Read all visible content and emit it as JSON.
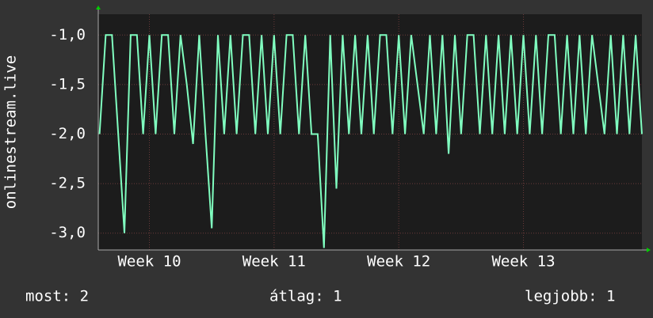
{
  "chart_data": {
    "type": "line",
    "y_label": "onlinestream.live",
    "x": [
      9.6,
      9.65,
      9.7,
      9.75,
      9.8,
      9.85,
      9.9,
      9.95,
      10.0,
      10.05,
      10.1,
      10.15,
      10.2,
      10.25,
      10.3,
      10.35,
      10.4,
      10.45,
      10.5,
      10.55,
      10.6,
      10.65,
      10.7,
      10.75,
      10.8,
      10.85,
      10.9,
      10.95,
      11.0,
      11.05,
      11.1,
      11.15,
      11.2,
      11.25,
      11.3,
      11.35,
      11.4,
      11.45,
      11.5,
      11.55,
      11.6,
      11.65,
      11.7,
      11.75,
      11.8,
      11.85,
      11.9,
      11.95,
      12.0,
      12.05,
      12.1,
      12.15,
      12.2,
      12.25,
      12.3,
      12.35,
      12.4,
      12.45,
      12.5,
      12.55,
      12.6,
      12.65,
      12.7,
      12.75,
      12.8,
      12.85,
      12.9,
      12.95,
      13.0,
      13.05,
      13.1,
      13.15,
      13.2,
      13.25,
      13.3,
      13.35,
      13.4,
      13.45,
      13.5,
      13.55,
      13.6,
      13.65,
      13.7,
      13.75,
      13.8,
      13.85,
      13.9,
      13.95
    ],
    "series": [
      {
        "color": "#80ffc0",
        "values": [
          -2,
          -1,
          -1,
          -2,
          -3,
          -1,
          -1,
          -2,
          -1,
          -2,
          -1,
          -1,
          -2,
          -1,
          -1.5,
          -2.1,
          -1,
          -2,
          -2.95,
          -1,
          -2,
          -1,
          -2,
          -1,
          -1,
          -2,
          -1,
          -2,
          -1,
          -2,
          -1,
          -1,
          -2,
          -1,
          -2,
          -2,
          -3.15,
          -1,
          -2.55,
          -1,
          -2,
          -1,
          -2,
          -1,
          -2,
          -1,
          -1,
          -2,
          -1,
          -2,
          -1,
          -1.5,
          -2,
          -1,
          -2,
          -1,
          -2.2,
          -1,
          -2,
          -1,
          -1,
          -2,
          -1,
          -2,
          -1,
          -2,
          -1,
          -2,
          -1,
          -2,
          -1,
          -2,
          -1,
          -1,
          -2,
          -1,
          -2,
          -1,
          -2,
          -1,
          -1.5,
          -2,
          -1,
          -2,
          -1,
          -2,
          -1,
          -2
        ]
      }
    ],
    "xlim": [
      9.59,
      13.95
    ],
    "xticks": [
      {
        "value": 10,
        "label": "Week 10"
      },
      {
        "value": 11,
        "label": "Week 11"
      },
      {
        "value": 12,
        "label": "Week 12"
      },
      {
        "value": 13,
        "label": "Week 13"
      }
    ],
    "ylim": [
      -3.17,
      -0.79
    ],
    "yticks": [
      {
        "value": -1,
        "label": "-1,0"
      },
      {
        "value": -1.5,
        "label": "-1,5"
      },
      {
        "value": -2,
        "label": "-2,0"
      },
      {
        "value": -2.5,
        "label": "-2,5"
      },
      {
        "value": -3,
        "label": "-3,0"
      }
    ],
    "grid": true,
    "footer": {
      "current": "most: 2",
      "average": "átlag: 1",
      "best": "legjobb: 1"
    }
  }
}
